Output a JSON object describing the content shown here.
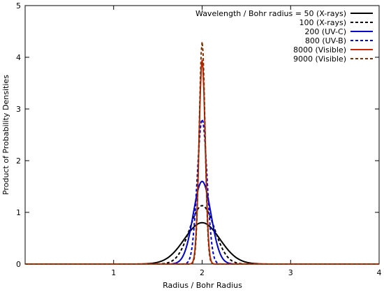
{
  "chart_data": {
    "type": "line",
    "xlabel": "Radius / Bohr Radius",
    "ylabel": "Product of Probability Densities",
    "xlim": [
      0,
      4
    ],
    "ylim": [
      0,
      5
    ],
    "xticks": [
      1,
      2,
      3,
      4
    ],
    "yticks": [
      0,
      1,
      2,
      3,
      4,
      5
    ],
    "grid": false,
    "legend_position": "top-right",
    "series": [
      {
        "name": "Wavelength / Bohr radius = 50 (X-rays)",
        "color": "#000000",
        "dash": "solid",
        "peak_x": 2.0,
        "peak_y": 0.8,
        "sigma": 0.2
      },
      {
        "name": "100 (X-rays)",
        "color": "#000000",
        "dash": "dashed",
        "peak_x": 2.0,
        "peak_y": 1.13,
        "sigma": 0.14
      },
      {
        "name": "200 (UV-C)",
        "color": "#0000cc",
        "dash": "solid",
        "peak_x": 2.0,
        "peak_y": 1.6,
        "sigma": 0.1
      },
      {
        "name": "800 (UV-B)",
        "color": "#0000cc",
        "dash": "dashed",
        "peak_x": 2.0,
        "peak_y": 2.8,
        "sigma": 0.055
      },
      {
        "name": "8000 (Visible)",
        "color": "#cc2200",
        "dash": "solid",
        "peak_x": 2.0,
        "peak_y": 3.95,
        "sigma": 0.035
      },
      {
        "name": "9000 (Visible)",
        "color": "#7a3300",
        "dash": "dashed",
        "peak_x": 2.0,
        "peak_y": 4.3,
        "sigma": 0.033
      }
    ]
  }
}
